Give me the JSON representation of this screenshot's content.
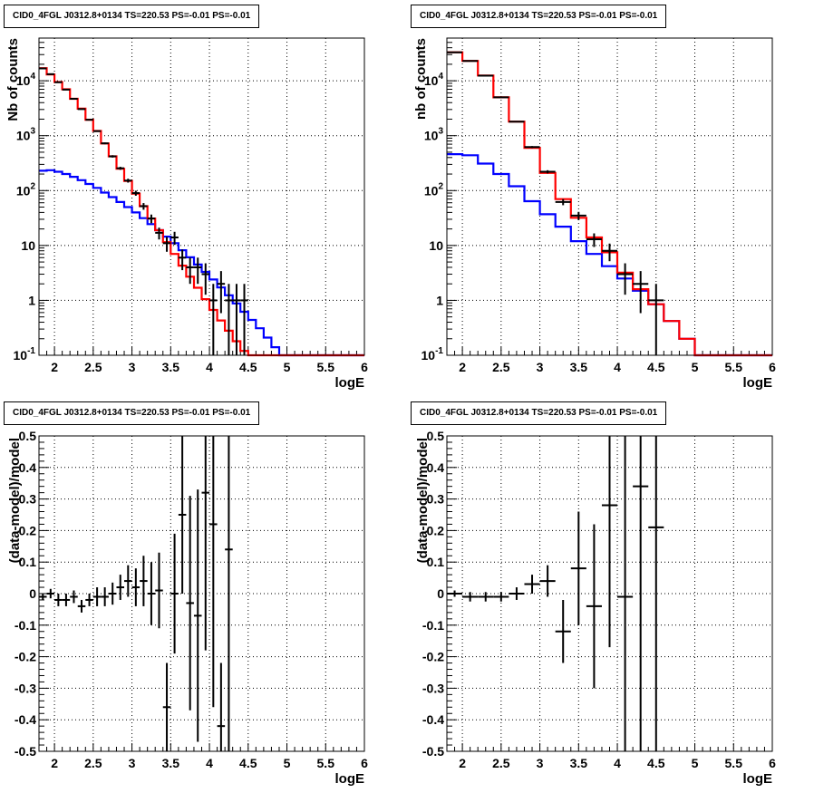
{
  "colors": {
    "data": "#000000",
    "total_model": "#ff0000",
    "component": "#0000ff",
    "grid": "#000000"
  },
  "chart_data": [
    {
      "type": "line",
      "title": "CID0_4FGL J0312.8+0134 TS=220.53 PS=-0.01 PS=-0.01",
      "xlabel": "logE",
      "ylabel": "Nb of counts",
      "xlim": [
        1.8,
        6.0
      ],
      "ylim": [
        0.1,
        60000
      ],
      "yscale": "log",
      "grid": true,
      "xticks": [
        "2",
        "2.5",
        "3",
        "3.5",
        "4",
        "4.5",
        "5",
        "5.5",
        "6"
      ],
      "yticks": [
        "10^-1",
        "1",
        "10",
        "10^2",
        "10^3",
        "10^4"
      ],
      "bin_edges": [
        1.8,
        1.9,
        2.0,
        2.1,
        2.2,
        2.3,
        2.4,
        2.5,
        2.6,
        2.7,
        2.8,
        2.9,
        3.0,
        3.1,
        3.2,
        3.3,
        3.4,
        3.5,
        3.6,
        3.7,
        3.8,
        3.9,
        4.0,
        4.1,
        4.2,
        4.3,
        4.4,
        4.5,
        4.6,
        4.7,
        4.8,
        4.9,
        5.0,
        5.1,
        5.2,
        5.3,
        5.4,
        5.5,
        5.6,
        5.7,
        5.8,
        5.9,
        6.0
      ],
      "series": [
        {
          "role": "total_model",
          "values": [
            17000,
            13000,
            9500,
            7000,
            4700,
            3100,
            1950,
            1220,
            720,
            420,
            250,
            150,
            88,
            52,
            31,
            19,
            11.5,
            7,
            4.3,
            2.7,
            1.7,
            1.05,
            0.67,
            0.43,
            0.28,
            0.18,
            0.12,
            0.1,
            0.1,
            0.1,
            0.1,
            0.1,
            0.1,
            0.1,
            0.1,
            0.1,
            0.1,
            0.1,
            0.1,
            0.1,
            0.1,
            0.1
          ]
        },
        {
          "role": "component",
          "values": [
            230,
            235,
            220,
            200,
            178,
            155,
            132,
            112,
            92,
            76,
            62,
            50,
            40,
            31.5,
            24.5,
            19,
            14.5,
            11,
            8.2,
            6.1,
            4.5,
            3.3,
            2.4,
            1.72,
            1.24,
            0.88,
            0.62,
            0.44,
            0.31,
            0.21,
            0.14,
            0.1,
            0.1,
            0.1,
            0.1,
            0.1,
            0.1,
            0.1,
            0.1,
            0.1,
            0.1,
            0.1
          ]
        }
      ],
      "data_points": [
        {
          "x": 1.85,
          "y": 16800
        },
        {
          "x": 1.95,
          "y": 13200
        },
        {
          "x": 2.05,
          "y": 9400
        },
        {
          "x": 2.15,
          "y": 6900
        },
        {
          "x": 2.25,
          "y": 4700
        },
        {
          "x": 2.35,
          "y": 3050
        },
        {
          "x": 2.45,
          "y": 1950
        },
        {
          "x": 2.55,
          "y": 1210
        },
        {
          "x": 2.65,
          "y": 725
        },
        {
          "x": 2.75,
          "y": 420
        },
        {
          "x": 2.85,
          "y": 255
        },
        {
          "x": 2.95,
          "y": 152
        },
        {
          "x": 3.05,
          "y": 90
        },
        {
          "x": 3.15,
          "y": 52
        },
        {
          "x": 3.25,
          "y": 31
        },
        {
          "x": 3.35,
          "y": 17
        },
        {
          "x": 3.45,
          "y": 11
        },
        {
          "x": 3.55,
          "y": 14
        },
        {
          "x": 3.65,
          "y": 6
        },
        {
          "x": 3.75,
          "y": 4
        },
        {
          "x": 3.85,
          "y": 4
        },
        {
          "x": 3.95,
          "y": 3
        },
        {
          "x": 4.05,
          "y": 1
        },
        {
          "x": 4.15,
          "y": 2
        },
        {
          "x": 4.25,
          "y": 1
        },
        {
          "x": 4.35,
          "y": 1
        },
        {
          "x": 4.45,
          "y": 1
        }
      ]
    },
    {
      "type": "line",
      "title": "CID0_4FGL J0312.8+0134 TS=220.53 PS=-0.01 PS=-0.01",
      "xlabel": "logE",
      "ylabel": "nb of counts",
      "xlim": [
        1.8,
        6.0
      ],
      "ylim": [
        0.1,
        60000
      ],
      "yscale": "log",
      "grid": true,
      "xticks": [
        "2",
        "2.5",
        "3",
        "3.5",
        "4",
        "4.5",
        "5",
        "5.5",
        "6"
      ],
      "yticks": [
        "10^-1",
        "1",
        "10",
        "10^2",
        "10^3",
        "10^4"
      ],
      "bin_edges": [
        1.8,
        2.0,
        2.2,
        2.4,
        2.6,
        2.8,
        3.0,
        3.2,
        3.4,
        3.6,
        3.8,
        4.0,
        4.2,
        4.4,
        4.6,
        4.8,
        5.0,
        5.2,
        5.4,
        5.6,
        5.8,
        6.0
      ],
      "series": [
        {
          "role": "total_model",
          "values": [
            33000,
            23000,
            12500,
            5000,
            1800,
            600,
            210,
            70,
            32,
            14,
            7.5,
            3.2,
            1.6,
            0.85,
            0.42,
            0.2,
            0.1,
            0.1,
            0.1,
            0.1,
            0.1
          ]
        },
        {
          "role": "component",
          "values": [
            460,
            440,
            310,
            200,
            120,
            64,
            37,
            22,
            12,
            7,
            4.2,
            2.5,
            1.5,
            0.85,
            0.42,
            0.2,
            0.1,
            0.1,
            0.1,
            0.1,
            0.1
          ]
        }
      ],
      "data_points": [
        {
          "x": 1.9,
          "y": 33000
        },
        {
          "x": 2.1,
          "y": 23000
        },
        {
          "x": 2.3,
          "y": 12400
        },
        {
          "x": 2.5,
          "y": 5000
        },
        {
          "x": 2.7,
          "y": 1800
        },
        {
          "x": 2.9,
          "y": 620
        },
        {
          "x": 3.1,
          "y": 220
        },
        {
          "x": 3.3,
          "y": 62
        },
        {
          "x": 3.5,
          "y": 35
        },
        {
          "x": 3.7,
          "y": 13
        },
        {
          "x": 3.9,
          "y": 8
        },
        {
          "x": 4.1,
          "y": 3
        },
        {
          "x": 4.3,
          "y": 2
        },
        {
          "x": 4.5,
          "y": 1
        }
      ]
    },
    {
      "type": "scatter",
      "title": "CID0_4FGL J0312.8+0134 TS=220.53 PS=-0.01 PS=-0.01",
      "xlabel": "logE",
      "ylabel": "(data-model)/model",
      "xlim": [
        1.8,
        6.0
      ],
      "ylim": [
        -0.5,
        0.5
      ],
      "grid": true,
      "xticks": [
        "2",
        "2.5",
        "3",
        "3.5",
        "4",
        "4.5",
        "5",
        "5.5",
        "6"
      ],
      "yticks": [
        "-0.5",
        "-0.4",
        "-0.3",
        "-0.2",
        "-0.1",
        "0",
        "0.1",
        "0.2",
        "0.3",
        "0.4",
        "0.5"
      ],
      "bin_width": 0.1,
      "points": [
        {
          "x": 1.85,
          "y": -0.01,
          "err": 0.01
        },
        {
          "x": 1.95,
          "y": 0.0,
          "err": 0.015
        },
        {
          "x": 2.05,
          "y": -0.02,
          "err": 0.02
        },
        {
          "x": 2.15,
          "y": -0.02,
          "err": 0.02
        },
        {
          "x": 2.25,
          "y": -0.01,
          "err": 0.02
        },
        {
          "x": 2.35,
          "y": -0.04,
          "err": 0.02
        },
        {
          "x": 2.45,
          "y": -0.02,
          "err": 0.02
        },
        {
          "x": 2.55,
          "y": -0.01,
          "err": 0.03
        },
        {
          "x": 2.65,
          "y": -0.01,
          "err": 0.03
        },
        {
          "x": 2.75,
          "y": 0.0,
          "err": 0.035
        },
        {
          "x": 2.85,
          "y": 0.02,
          "err": 0.04
        },
        {
          "x": 2.95,
          "y": 0.04,
          "err": 0.05
        },
        {
          "x": 3.05,
          "y": 0.02,
          "err": 0.06
        },
        {
          "x": 3.15,
          "y": 0.04,
          "err": 0.08
        },
        {
          "x": 3.25,
          "y": 0.0,
          "err": 0.1
        },
        {
          "x": 3.35,
          "y": 0.01,
          "err": 0.12
        },
        {
          "x": 3.45,
          "y": -0.36,
          "err": 0.14
        },
        {
          "x": 3.55,
          "y": 0.0,
          "err": 0.19
        },
        {
          "x": 3.65,
          "y": 0.25,
          "err": 0.25
        },
        {
          "x": 3.75,
          "y": -0.03,
          "err": 0.34
        },
        {
          "x": 3.85,
          "y": -0.07,
          "err": 0.4
        },
        {
          "x": 3.95,
          "y": 0.32,
          "err": 0.5
        },
        {
          "x": 4.05,
          "y": 0.22,
          "err": 0.58
        },
        {
          "x": 4.15,
          "y": -0.42,
          "err": 0.2
        },
        {
          "x": 4.25,
          "y": 0.14,
          "err": 0.7
        }
      ]
    },
    {
      "type": "scatter",
      "title": "CID0_4FGL J0312.8+0134 TS=220.53 PS=-0.01 PS=-0.01",
      "xlabel": "logE",
      "ylabel": "(data-model)/model",
      "xlim": [
        1.8,
        6.0
      ],
      "ylim": [
        -0.5,
        0.5
      ],
      "grid": true,
      "xticks": [
        "2",
        "2.5",
        "3",
        "3.5",
        "4",
        "4.5",
        "5",
        "5.5",
        "6"
      ],
      "yticks": [
        "-0.5",
        "-0.4",
        "-0.3",
        "-0.2",
        "-0.1",
        "0",
        "0.1",
        "0.2",
        "0.3",
        "0.4",
        "0.5"
      ],
      "bin_width": 0.2,
      "points": [
        {
          "x": 1.9,
          "y": 0.0,
          "err": 0.01
        },
        {
          "x": 2.1,
          "y": -0.01,
          "err": 0.015
        },
        {
          "x": 2.3,
          "y": -0.01,
          "err": 0.015
        },
        {
          "x": 2.5,
          "y": -0.01,
          "err": 0.015
        },
        {
          "x": 2.7,
          "y": 0.0,
          "err": 0.02
        },
        {
          "x": 2.9,
          "y": 0.03,
          "err": 0.03
        },
        {
          "x": 3.1,
          "y": 0.04,
          "err": 0.05
        },
        {
          "x": 3.3,
          "y": -0.12,
          "err": 0.1
        },
        {
          "x": 3.5,
          "y": 0.08,
          "err": 0.18
        },
        {
          "x": 3.7,
          "y": -0.04,
          "err": 0.26
        },
        {
          "x": 3.9,
          "y": 0.28,
          "err": 0.45
        },
        {
          "x": 4.1,
          "y": -0.01,
          "err": 0.9
        },
        {
          "x": 4.3,
          "y": 0.34,
          "err": 0.9
        },
        {
          "x": 4.5,
          "y": 0.21,
          "err": 0.9
        }
      ]
    }
  ]
}
